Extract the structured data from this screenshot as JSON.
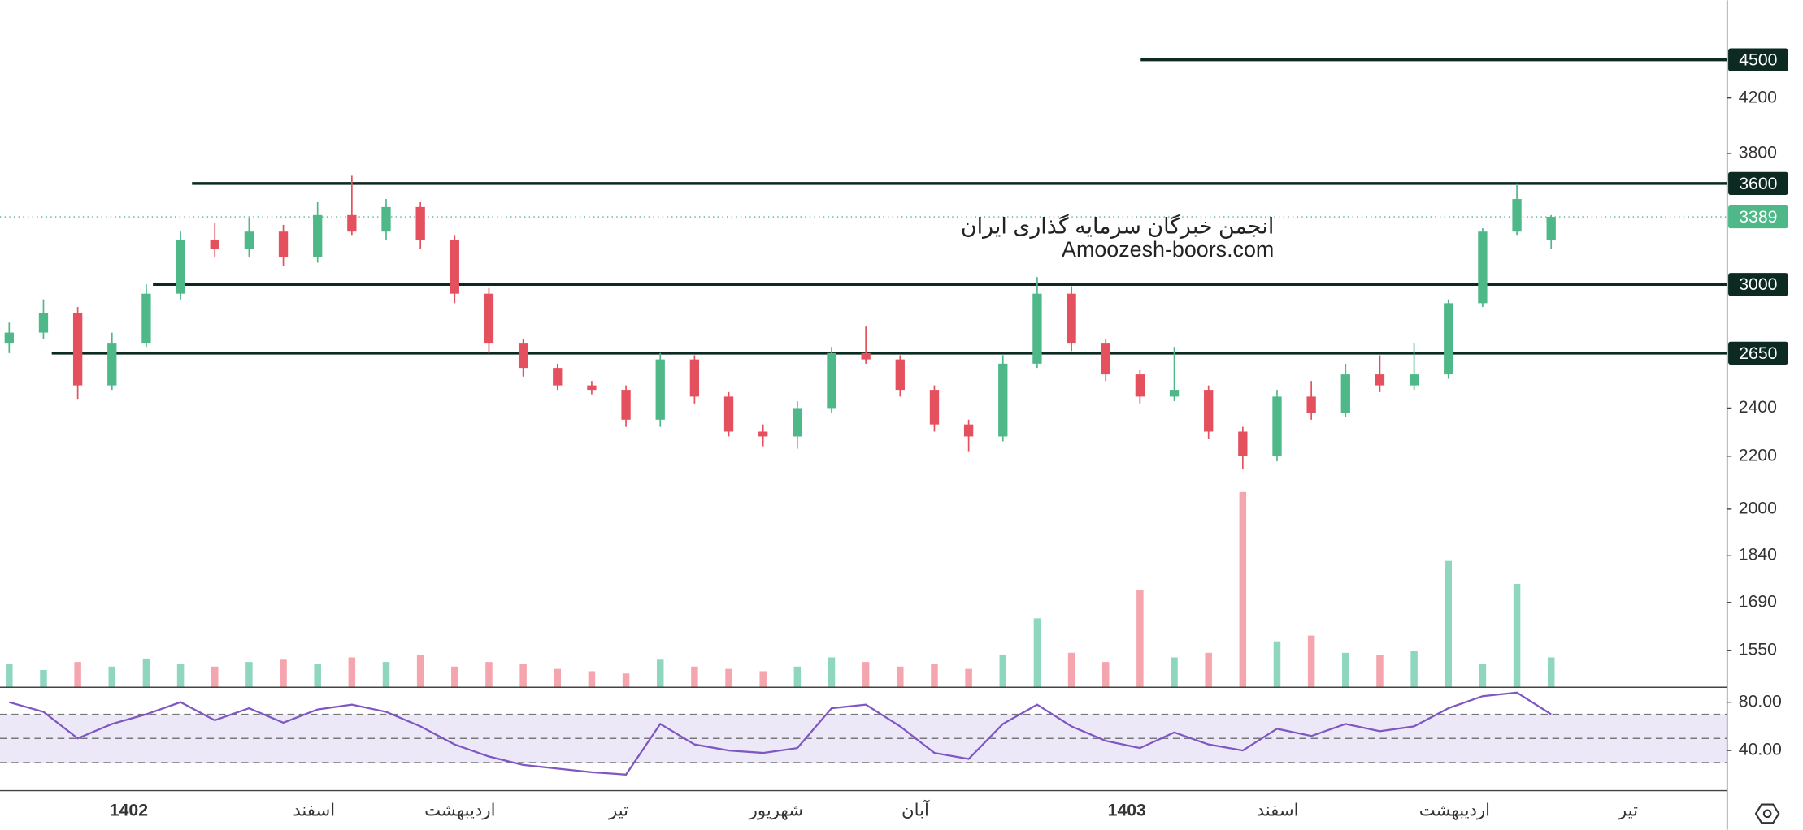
{
  "chart_data": {
    "type": "candlestick",
    "watermark": [
      "انجمن خبرگان سرمایه گذاری ایران",
      "Amoozesh-boors.com"
    ],
    "open": [
      2700,
      2750,
      2850,
      2500,
      2700,
      2950,
      3250,
      3200,
      3300,
      3150,
      3400,
      3300,
      3450,
      3250,
      2950,
      2700,
      2580,
      2500,
      2480,
      2350,
      2620,
      2450,
      2300,
      2280,
      2400,
      2650,
      2620,
      2480,
      2330,
      2280,
      2600,
      2950,
      2700,
      2550,
      2450,
      2480,
      2300,
      2200,
      2450,
      2380,
      2550,
      2500,
      2550,
      2900,
      3300,
      3250
    ],
    "high": [
      2800,
      2920,
      2880,
      2750,
      3000,
      3300,
      3350,
      3380,
      3340,
      3480,
      3650,
      3500,
      3480,
      3280,
      2980,
      2720,
      2600,
      2520,
      2500,
      2650,
      2640,
      2470,
      2330,
      2430,
      2680,
      2780,
      2640,
      2500,
      2350,
      2640,
      3040,
      2990,
      2720,
      2570,
      2680,
      2500,
      2320,
      2480,
      2520,
      2600,
      2640,
      2700,
      2920,
      3320,
      3600,
      3400
    ],
    "low": [
      2650,
      2720,
      2440,
      2480,
      2680,
      2920,
      3150,
      3150,
      3100,
      3120,
      3280,
      3250,
      3200,
      2900,
      2650,
      2540,
      2480,
      2460,
      2320,
      2320,
      2420,
      2280,
      2240,
      2230,
      2380,
      2600,
      2450,
      2300,
      2220,
      2260,
      2580,
      2660,
      2520,
      2420,
      2430,
      2270,
      2150,
      2180,
      2350,
      2360,
      2470,
      2480,
      2530,
      2880,
      3280,
      3200
    ],
    "close": [
      2750,
      2850,
      2500,
      2700,
      2950,
      3250,
      3200,
      3300,
      3150,
      3400,
      3300,
      3450,
      3250,
      2950,
      2700,
      2580,
      2500,
      2480,
      2350,
      2620,
      2450,
      2300,
      2280,
      2400,
      2650,
      2620,
      2480,
      2330,
      2280,
      2600,
      2950,
      2700,
      2550,
      2450,
      2480,
      2300,
      2200,
      2450,
      2380,
      2550,
      2500,
      2550,
      2900,
      3300,
      3500,
      3389
    ],
    "up_color": "#4fb889",
    "down_color": "#e5505e",
    "ylim": [
      1450,
      5010
    ],
    "log_scale": true,
    "yticks": [
      4200,
      3800,
      2400,
      2200,
      2000,
      1840,
      1690,
      1550
    ],
    "levels": [
      4500,
      3600,
      3000,
      2650
    ],
    "level_color": "#0c2a22",
    "last_price": 3389,
    "last_price_color": "#4fb889",
    "time_labels": [
      "1402",
      "اسفند",
      "اردیبهشت",
      "تیر",
      "شهریور",
      "آبان",
      "1403",
      "اسفند",
      "اردیبهشت",
      "تیر"
    ],
    "volume": {
      "values": [
        20,
        15,
        22,
        18,
        25,
        20,
        18,
        22,
        24,
        20,
        26,
        22,
        28,
        18,
        22,
        20,
        16,
        14,
        12,
        24,
        18,
        16,
        14,
        18,
        26,
        22,
        18,
        20,
        16,
        28,
        60,
        30,
        22,
        85,
        26,
        30,
        170,
        40,
        45,
        30,
        28,
        32,
        110,
        20,
        90,
        26
      ],
      "up_color": "#8fd6c0",
      "down_color": "#f5a5ae"
    },
    "rsi": {
      "values": [
        80,
        72,
        50,
        62,
        70,
        80,
        65,
        75,
        63,
        74,
        78,
        72,
        60,
        45,
        35,
        28,
        25,
        22,
        20,
        62,
        45,
        40,
        38,
        42,
        75,
        78,
        60,
        38,
        33,
        62,
        78,
        60,
        48,
        42,
        55,
        45,
        40,
        58,
        52,
        62,
        56,
        60,
        75,
        85,
        88,
        70
      ],
      "ylim": [
        6.7,
        92.4
      ],
      "yticks": [
        {
          "value": 80,
          "label": "80.00"
        },
        {
          "value": 40,
          "label": "40.00"
        }
      ],
      "bands": [
        70,
        50,
        30
      ],
      "color": "#7e57c2",
      "band_fill": "#ede8f8"
    }
  }
}
